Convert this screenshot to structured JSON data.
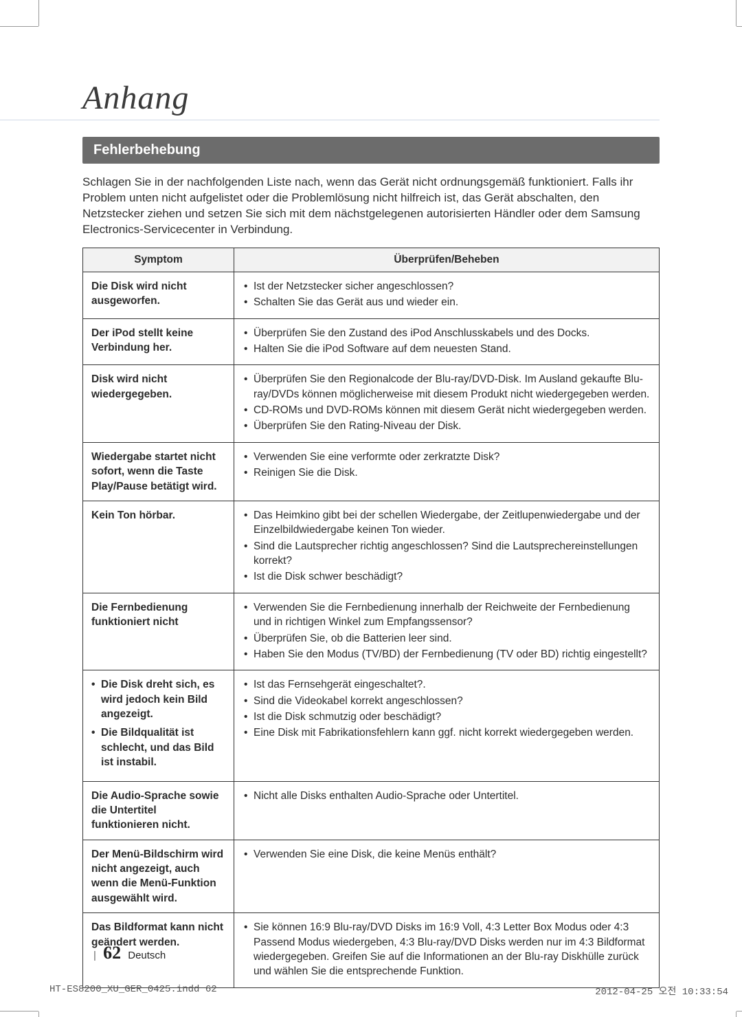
{
  "title": "Anhang",
  "section_header": "Fehlerbehebung",
  "intro": "Schlagen Sie in der nachfolgenden Liste nach, wenn das Gerät nicht ordnungsgemäß funktioniert. Falls ihr Problem unten nicht aufgelistet oder die Problemlösung nicht hilfreich ist, das Gerät abschalten, den Netzstecker ziehen und setzen Sie sich mit dem nächstgelegenen autorisierten Händler oder dem Samsung Electronics-Servicecenter in Verbindung.",
  "table_headers": {
    "symptom": "Symptom",
    "fix": "Überprüfen/Beheben"
  },
  "rows": [
    {
      "symptom": "Die Disk wird nicht ausgeworfen.",
      "fix": [
        "Ist der Netzstecker sicher angeschlossen?",
        "Schalten Sie das Gerät aus und wieder ein."
      ]
    },
    {
      "symptom": "Der iPod stellt keine Verbindung her.",
      "fix": [
        "Überprüfen Sie den Zustand des iPod Anschlusskabels und des Docks.",
        "Halten Sie die iPod Software auf dem neuesten Stand."
      ]
    },
    {
      "symptom": "Disk wird nicht wiedergegeben.",
      "fix": [
        "Überprüfen Sie den Regionalcode der Blu-ray/DVD-Disk. Im Ausland gekaufte Blu-ray/DVDs können möglicherweise mit diesem Produkt nicht wiedergegeben werden.",
        "CD-ROMs und DVD-ROMs können mit diesem Gerät nicht wiedergegeben werden.",
        "Überprüfen Sie den Rating-Niveau der Disk."
      ]
    },
    {
      "symptom": "Wiedergabe startet nicht sofort, wenn die Taste Play/Pause betätigt wird.",
      "fix": [
        "Verwenden Sie eine verformte oder zerkratzte Disk?",
        "Reinigen Sie die Disk."
      ]
    },
    {
      "symptom": "Kein Ton hörbar.",
      "fix": [
        "Das Heimkino gibt bei der schellen Wiedergabe, der Zeitlupenwiedergabe und der Einzelbildwiedergabe keinen Ton wieder.",
        "Sind die Lautsprecher richtig angeschlossen? Sind die Lautsprechereinstellungen korrekt?",
        "Ist die Disk schwer beschädigt?"
      ]
    },
    {
      "symptom": "Die Fernbedienung funktioniert nicht",
      "fix": [
        "Verwenden Sie die Fernbedienung innerhalb der Reichweite der Fernbedienung und in richtigen Winkel zum Empfangssensor?",
        "Überprüfen Sie, ob die Batterien leer sind.",
        "Haben Sie den Modus (TV/BD) der Fernbedienung (TV oder BD) richtig eingestellt?"
      ]
    },
    {
      "symptom_list": [
        "Die Disk dreht sich, es wird jedoch kein Bild angezeigt.",
        "Die Bildqualität ist schlecht, und das Bild ist instabil."
      ],
      "fix": [
        "Ist das Fernsehgerät eingeschaltet?.",
        "Sind die Videokabel korrekt angeschlossen?",
        "Ist die Disk schmutzig oder beschädigt?",
        "Eine Disk mit Fabrikationsfehlern kann ggf. nicht korrekt wiedergegeben werden."
      ]
    },
    {
      "symptom": "Die Audio-Sprache sowie die Untertitel funktionieren nicht.",
      "fix": [
        "Nicht alle Disks enthalten Audio-Sprache oder Untertitel."
      ]
    },
    {
      "symptom": "Der Menü-Bildschirm wird nicht angezeigt, auch wenn die Menü-Funktion ausgewählt wird.",
      "fix": [
        "Verwenden Sie eine Disk, die keine Menüs enthält?"
      ]
    },
    {
      "symptom": "Das Bildformat kann nicht geändert werden.",
      "fix": [
        "Sie können 16:9 Blu-ray/DVD Disks im 16:9 Voll, 4:3 Letter Box Modus oder 4:3 Passend Modus wiedergeben, 4:3 Blu-ray/DVD Disks werden nur im 4:3 Bildformat wiedergegeben. Greifen Sie auf die Informationen an der Blu-ray Diskhülle zurück und wählen Sie die entsprechende Funktion."
      ]
    }
  ],
  "page_number": "62",
  "page_lang": "Deutsch",
  "footer_left": "HT-ES8200_XU_GER_0425.indd   62",
  "footer_right": "2012-04-25   오전 10:33:54",
  "colors": {
    "section_bg": "#6c6c6c",
    "section_fg": "#ffffff",
    "border": "#333333",
    "header_row_bg": "#f2f2f2",
    "text": "#2b2b2b"
  }
}
